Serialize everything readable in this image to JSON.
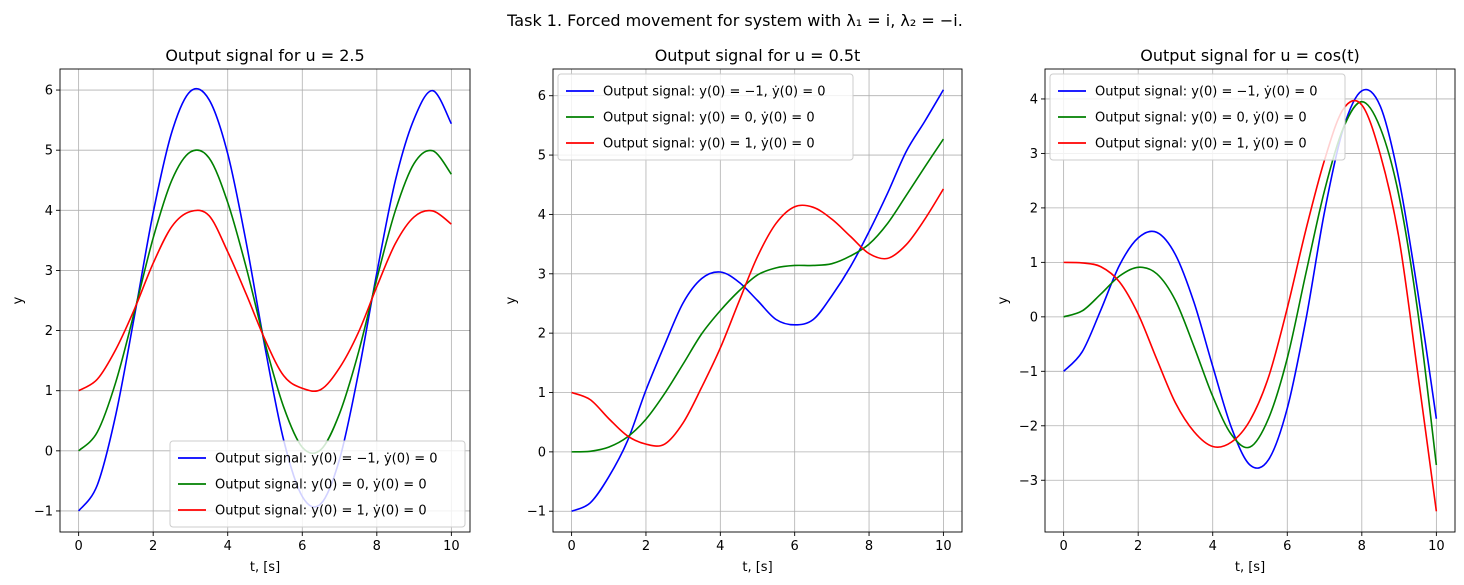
{
  "figure": {
    "suptitle": "Task 1. Forced movement for system with λ₁ = i, λ₂ = −i."
  },
  "chart_data": [
    {
      "type": "line",
      "title": "Output signal for u = 2.5",
      "xlabel": "t, [s]",
      "ylabel": "y",
      "xlim": [
        -0.5,
        10.5
      ],
      "ylim": [
        -1.35,
        6.35
      ],
      "xticks": [
        0,
        2,
        4,
        6,
        8,
        10
      ],
      "yticks": [
        -1,
        0,
        1,
        2,
        3,
        4,
        5,
        6
      ],
      "grid": true,
      "legend_position": "lower-right",
      "series": [
        {
          "name": "Output signal: y(0) = −1, ẏ(0) = 0",
          "color": "#0000ff",
          "x": [
            0,
            0.5,
            1,
            1.5,
            2,
            2.5,
            3,
            3.5,
            4,
            4.5,
            5,
            5.5,
            6,
            6.5,
            7,
            7.5,
            8,
            8.5,
            9,
            9.5,
            10
          ],
          "y": [
            -1,
            -0.57,
            0.61,
            2.25,
            3.96,
            5.3,
            5.98,
            5.84,
            4.94,
            3.45,
            1.72,
            0.18,
            -0.76,
            -0.88,
            -0.14,
            1.27,
            2.96,
            4.5,
            5.52,
            5.99,
            5.44
          ]
        },
        {
          "name": "Output signal: y(0) = 0, ẏ(0) = 0",
          "color": "#008000",
          "x": [
            0,
            0.5,
            1,
            1.5,
            2,
            2.5,
            3,
            3.5,
            4,
            4.5,
            5,
            5.5,
            6,
            6.5,
            7,
            7.5,
            8,
            8.5,
            9,
            9.5,
            10
          ],
          "y": [
            0,
            0.31,
            1.15,
            2.32,
            3.54,
            4.5,
            4.97,
            4.87,
            4.13,
            3.04,
            1.79,
            0.73,
            0.06,
            0.02,
            0.62,
            1.62,
            2.86,
            4.0,
            4.78,
            4.99,
            4.6
          ]
        },
        {
          "name": "Output signal: y(0) = 1, ẏ(0) = 0",
          "color": "#ff0000",
          "x": [
            0,
            0.5,
            1,
            1.5,
            2,
            2.5,
            3,
            3.5,
            4,
            4.5,
            5,
            5.5,
            6,
            6.5,
            7,
            7.5,
            8,
            8.5,
            9,
            9.5,
            10
          ],
          "y": [
            1,
            1.19,
            1.69,
            2.36,
            3.12,
            3.73,
            3.98,
            3.91,
            3.31,
            2.6,
            1.85,
            1.25,
            1.04,
            1.02,
            1.38,
            1.96,
            2.73,
            3.45,
            3.89,
            3.99,
            3.77
          ]
        }
      ]
    },
    {
      "type": "line",
      "title": "Output signal for u = 0.5t",
      "xlabel": "t, [s]",
      "ylabel": "y",
      "xlim": [
        -0.5,
        10.5
      ],
      "ylim": [
        -1.35,
        6.45
      ],
      "xticks": [
        0,
        2,
        4,
        6,
        8,
        10
      ],
      "yticks": [
        -1,
        0,
        1,
        2,
        3,
        4,
        5,
        6
      ],
      "grid": true,
      "legend_position": "upper-left",
      "series": [
        {
          "name": "Output signal: y(0) = −1, ẏ(0) = 0",
          "color": "#0000ff",
          "x": [
            0,
            0.5,
            1,
            1.5,
            2,
            2.5,
            3,
            3.5,
            4,
            4.5,
            5,
            5.5,
            6,
            6.5,
            7,
            7.5,
            8,
            8.5,
            9,
            9.5,
            10
          ],
          "y": [
            -1,
            -0.86,
            -0.42,
            0.18,
            1.04,
            1.8,
            2.51,
            2.92,
            3.03,
            2.86,
            2.55,
            2.23,
            2.14,
            2.23,
            2.63,
            3.12,
            3.71,
            4.36,
            5.06,
            5.57,
            6.1
          ]
        },
        {
          "name": "Output signal: y(0) = 0, ẏ(0) = 0",
          "color": "#008000",
          "x": [
            0,
            0.5,
            1,
            1.5,
            2,
            2.5,
            3,
            3.5,
            4,
            4.5,
            5,
            5.5,
            6,
            6.5,
            7,
            7.5,
            8,
            8.5,
            9,
            9.5,
            10
          ],
          "y": [
            0,
            0.01,
            0.08,
            0.25,
            0.55,
            0.98,
            1.48,
            1.99,
            2.38,
            2.71,
            2.98,
            3.1,
            3.14,
            3.14,
            3.17,
            3.3,
            3.5,
            3.85,
            4.32,
            4.8,
            5.27
          ]
        },
        {
          "name": "Output signal: y(0) = 1, ẏ(0) = 0",
          "color": "#ff0000",
          "x": [
            0,
            0.5,
            1,
            1.5,
            2,
            2.5,
            3,
            3.5,
            4,
            4.5,
            5,
            5.5,
            6,
            6.5,
            7,
            7.5,
            8,
            8.5,
            9,
            9.5,
            10
          ],
          "y": [
            1,
            0.88,
            0.56,
            0.27,
            0.13,
            0.13,
            0.49,
            1.09,
            1.75,
            2.53,
            3.29,
            3.85,
            4.13,
            4.12,
            3.92,
            3.63,
            3.34,
            3.26,
            3.49,
            3.92,
            4.43
          ]
        }
      ]
    },
    {
      "type": "line",
      "title": "Output signal for u = cos(t)",
      "xlabel": "t, [s]",
      "ylabel": "y",
      "xlim": [
        -0.5,
        10.5
      ],
      "ylim": [
        -3.95,
        4.55
      ],
      "xticks": [
        0,
        2,
        4,
        6,
        8,
        10
      ],
      "yticks": [
        -3,
        -2,
        -1,
        0,
        1,
        2,
        3,
        4
      ],
      "grid": true,
      "legend_position": "upper-left",
      "series": [
        {
          "name": "Output signal: y(0) = −1, ẏ(0) = 0",
          "color": "#0000ff",
          "x": [
            0,
            0.5,
            1,
            1.5,
            2,
            2.5,
            3,
            3.5,
            4,
            4.5,
            5,
            5.5,
            6,
            6.5,
            7,
            7.5,
            8,
            8.5,
            9,
            9.5,
            10
          ],
          "y": [
            -1,
            -0.64,
            0.13,
            0.95,
            1.45,
            1.55,
            1.14,
            0.26,
            -0.91,
            -2.03,
            -2.72,
            -2.62,
            -1.68,
            -0.05,
            1.93,
            3.45,
            4.15,
            3.86,
            2.51,
            0.46,
            -1.87
          ]
        },
        {
          "name": "Output signal: y(0) = 0, ẏ(0) = 0",
          "color": "#008000",
          "x": [
            0,
            0.5,
            1,
            1.5,
            2,
            2.5,
            3,
            3.5,
            4,
            4.5,
            5,
            5.5,
            6,
            6.5,
            7,
            7.5,
            8,
            8.5,
            9,
            9.5,
            10
          ],
          "y": [
            0,
            0.11,
            0.42,
            0.75,
            0.91,
            0.79,
            0.3,
            -0.55,
            -1.46,
            -2.16,
            -2.39,
            -1.86,
            -0.76,
            0.8,
            2.32,
            3.46,
            3.95,
            3.46,
            2.21,
            0.1,
            -2.72
          ]
        },
        {
          "name": "Output signal: y(0) = 1, ẏ(0) = 0",
          "color": "#ff0000",
          "x": [
            0,
            0.5,
            1,
            1.5,
            2,
            2.5,
            3,
            3.5,
            4,
            4.5,
            5,
            5.5,
            6,
            6.5,
            7,
            7.5,
            8,
            8.5,
            9,
            9.5,
            10
          ],
          "y": [
            1,
            0.99,
            0.92,
            0.64,
            0.05,
            -0.78,
            -1.58,
            -2.11,
            -2.38,
            -2.3,
            -1.9,
            -1.1,
            0.16,
            1.6,
            2.88,
            3.81,
            3.89,
            2.97,
            1.43,
            -1.03,
            -3.57
          ]
        }
      ]
    }
  ]
}
